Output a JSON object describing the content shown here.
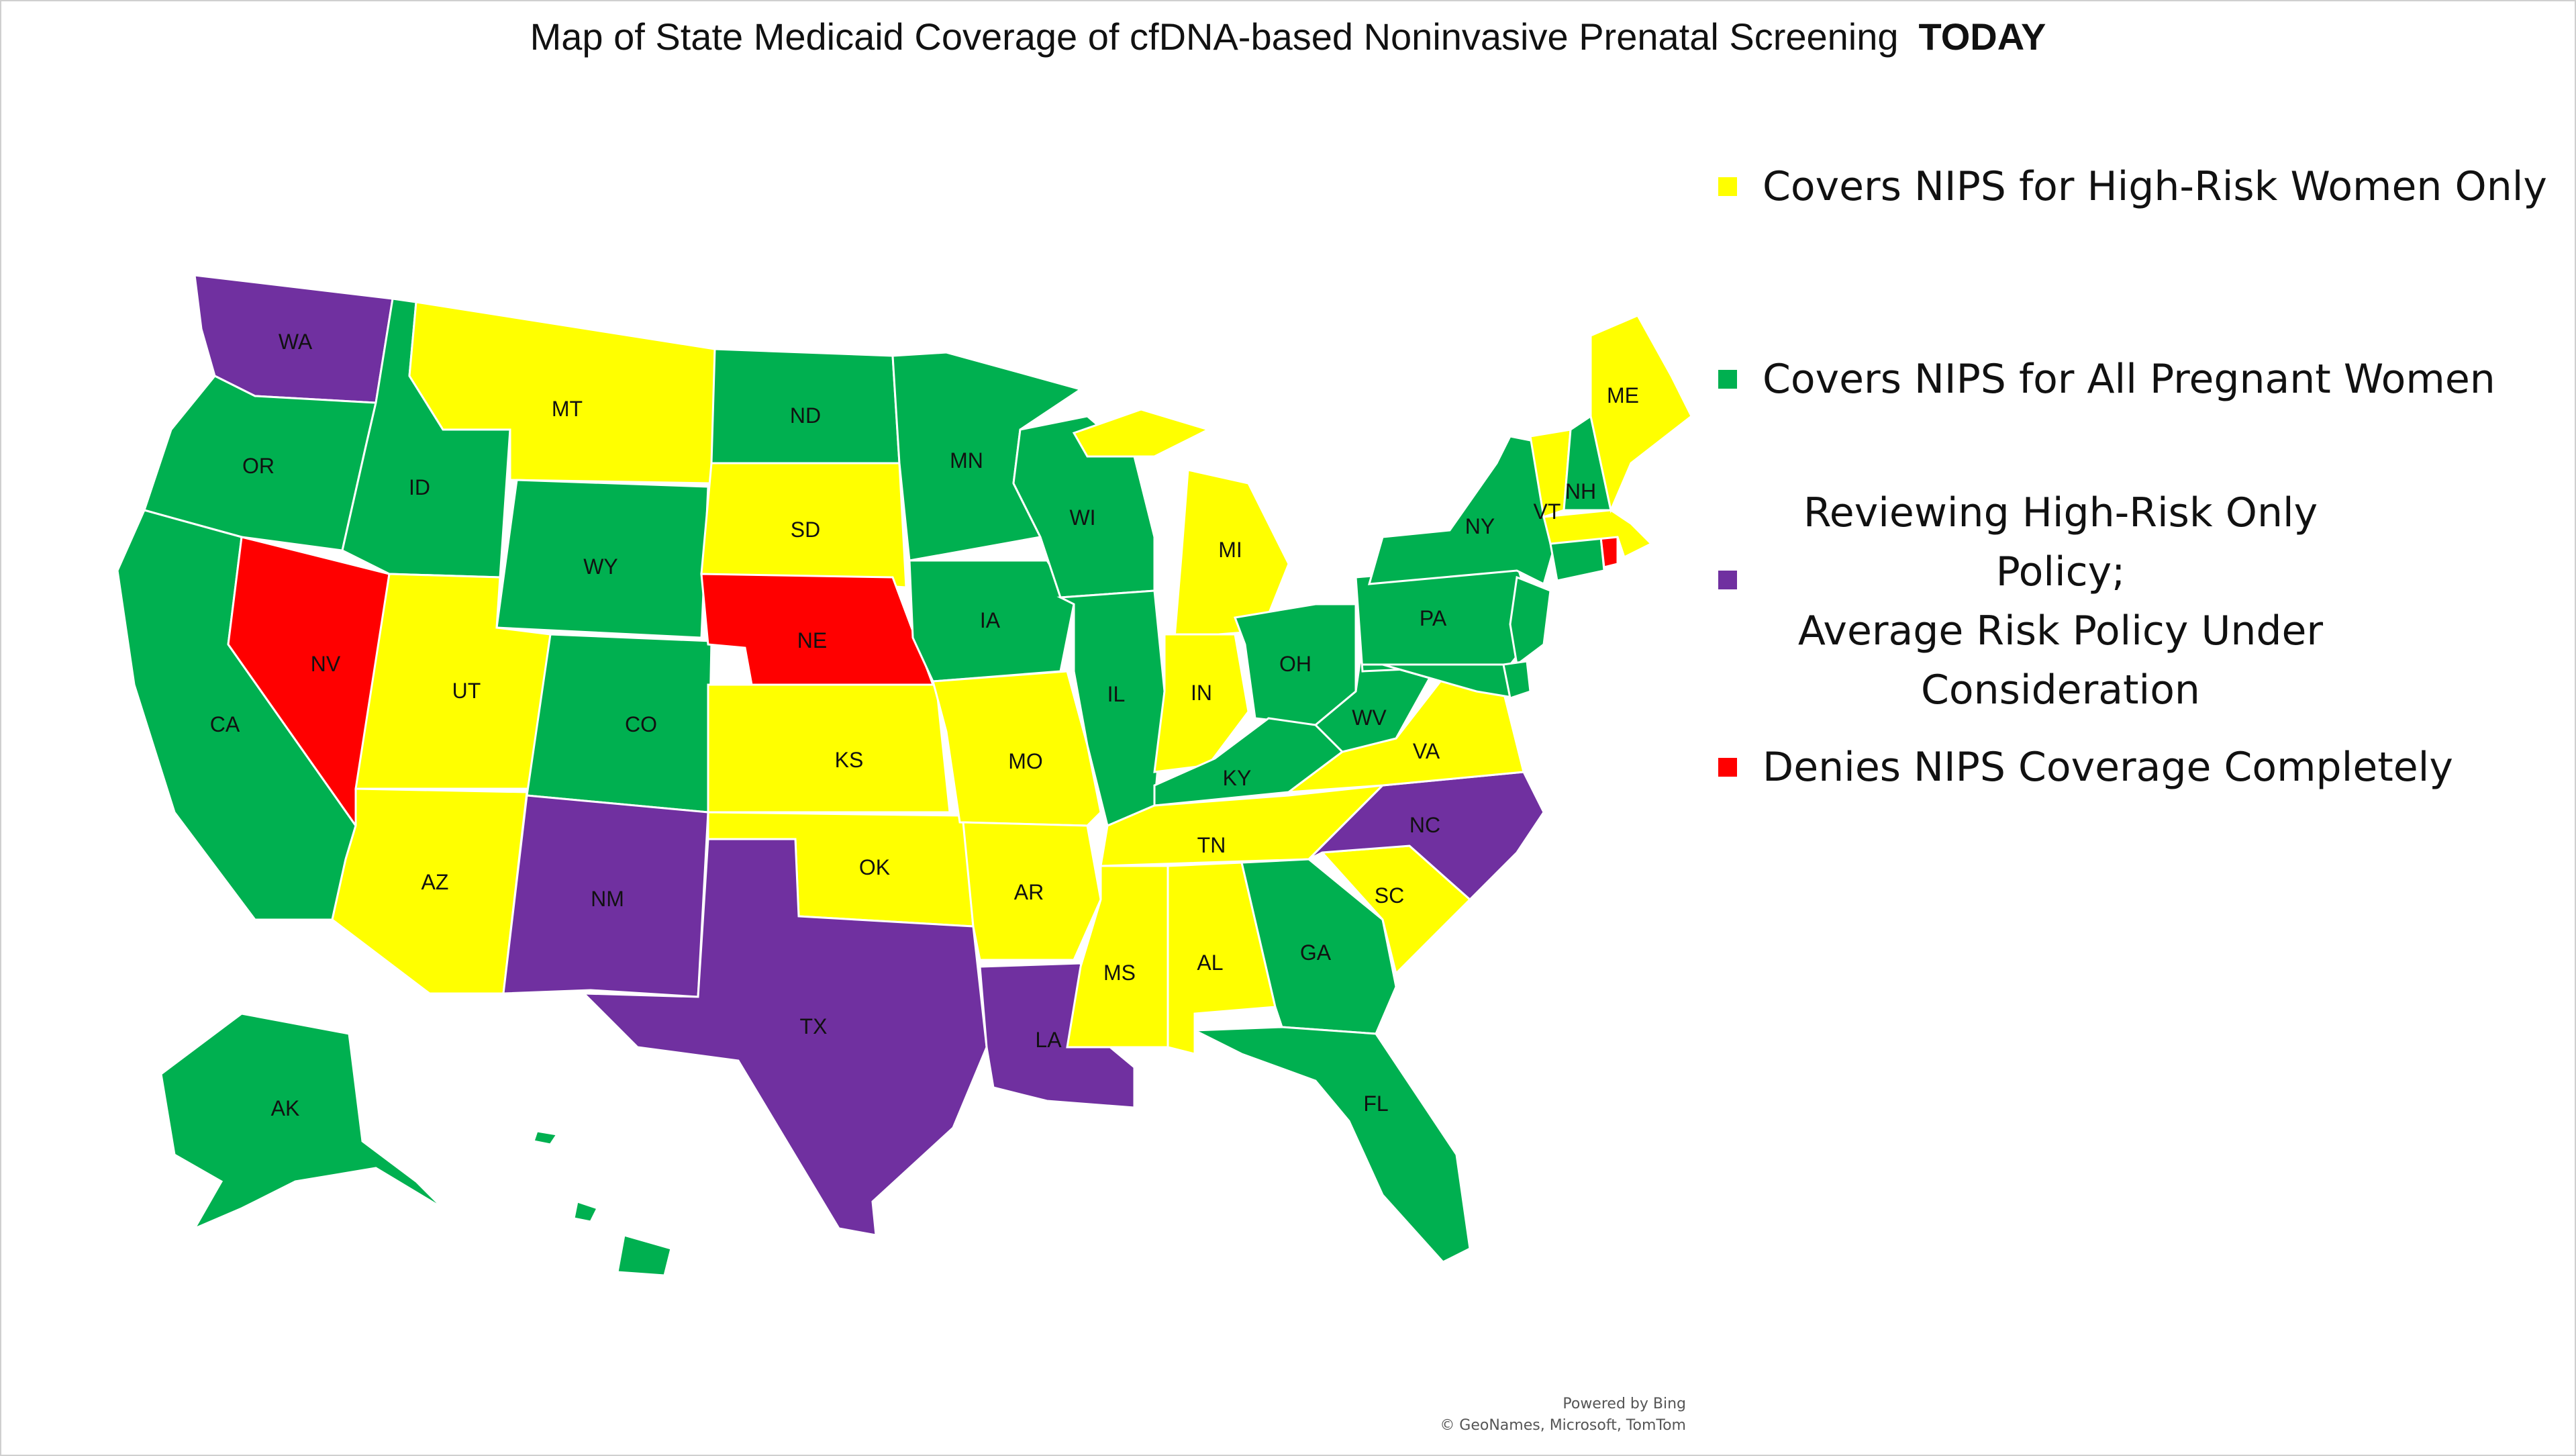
{
  "title": {
    "main": "Map of State Medicaid Coverage of cfDNA-based Noninvasive Prenatal Screening",
    "emphasis": "TODAY"
  },
  "colors": {
    "high_risk_only": "#FFFF00",
    "all_pregnant_women": "#00B050",
    "reviewing": "#7030A0",
    "denies": "#FF0000"
  },
  "legend": [
    {
      "key": "high_risk_only",
      "label": "Covers NIPS for High-Risk Women Only"
    },
    {
      "key": "all_pregnant_women",
      "label": "Covers NIPS for All Pregnant Women"
    },
    {
      "key": "reviewing",
      "label": "Reviewing High-Risk Only Policy;\nAverage Risk Policy Under\nConsideration"
    },
    {
      "key": "denies",
      "label": "Denies NIPS Coverage Completely"
    }
  ],
  "states": {
    "WA": "reviewing",
    "OR": "all_pregnant_women",
    "CA": "all_pregnant_women",
    "NV": "denies",
    "ID": "all_pregnant_women",
    "MT": "high_risk_only",
    "WY": "all_pregnant_women",
    "UT": "high_risk_only",
    "AZ": "high_risk_only",
    "CO": "all_pregnant_women",
    "NM": "reviewing",
    "ND": "all_pregnant_women",
    "SD": "high_risk_only",
    "NE": "denies",
    "KS": "high_risk_only",
    "OK": "high_risk_only",
    "TX": "reviewing",
    "MN": "all_pregnant_women",
    "IA": "all_pregnant_women",
    "MO": "high_risk_only",
    "AR": "high_risk_only",
    "LA": "reviewing",
    "WI": "all_pregnant_women",
    "IL": "all_pregnant_women",
    "MI": "high_risk_only",
    "IN": "high_risk_only",
    "OH": "all_pregnant_women",
    "KY": "all_pregnant_women",
    "TN": "high_risk_only",
    "MS": "high_risk_only",
    "AL": "high_risk_only",
    "GA": "all_pregnant_women",
    "FL": "all_pregnant_women",
    "SC": "high_risk_only",
    "NC": "reviewing",
    "VA": "high_risk_only",
    "WV": "all_pregnant_women",
    "PA": "all_pregnant_women",
    "NY": "all_pregnant_women",
    "VT": "high_risk_only",
    "NH": "all_pregnant_women",
    "ME": "high_risk_only",
    "MA": "high_risk_only",
    "RI": "denies",
    "CT": "all_pregnant_women",
    "NJ": "all_pregnant_women",
    "DE": "all_pregnant_women",
    "MD": "all_pregnant_women",
    "AK": "all_pregnant_women",
    "HI": "all_pregnant_women"
  },
  "credit": {
    "line1": "Powered by Bing",
    "line2": "© GeoNames, Microsoft, TomTom"
  }
}
